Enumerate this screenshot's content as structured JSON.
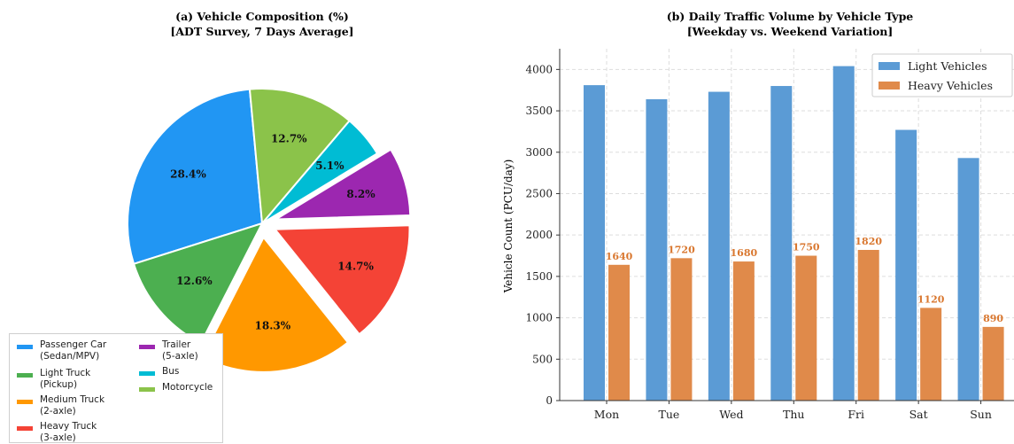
{
  "chart_data": [
    {
      "type": "pie",
      "title": "(a) Vehicle Composition (%)",
      "subtitle": "[ADT Survey, 7 Days Average]",
      "slices": [
        {
          "label": "Passenger Car\n(Sedan/MPV)",
          "value": 28.4,
          "value_label": "28.4%",
          "color": "#2196f3",
          "explode": false
        },
        {
          "label": "Light Truck\n(Pickup)",
          "value": 12.6,
          "value_label": "12.6%",
          "color": "#4caf50",
          "explode": false
        },
        {
          "label": "Medium Truck\n(2-axle)",
          "value": 18.3,
          "value_label": "18.3%",
          "color": "#ff9800",
          "explode": true
        },
        {
          "label": "Heavy Truck\n(3-axle)",
          "value": 14.7,
          "value_label": "14.7%",
          "color": "#f44336",
          "explode": true
        },
        {
          "label": "Trailer\n(5-axle)",
          "value": 8.2,
          "value_label": "8.2%",
          "color": "#9c27b0",
          "explode": true
        },
        {
          "label": "Bus",
          "value": 5.1,
          "value_label": "5.1%",
          "color": "#00bcd4",
          "explode": false
        },
        {
          "label": "Motorcycle",
          "value": 12.7,
          "value_label": "12.7%",
          "color": "#8bc34a",
          "explode": false
        }
      ],
      "legend_position": "bottom-left"
    },
    {
      "type": "bar",
      "title": "(b) Daily Traffic Volume by Vehicle Type",
      "subtitle": "[Weekday vs. Weekend Variation]",
      "categories": [
        "Mon",
        "Tue",
        "Wed",
        "Thu",
        "Fri",
        "Sat",
        "Sun"
      ],
      "series": [
        {
          "name": "Light Vehicles",
          "values": [
            3810,
            3640,
            3730,
            3800,
            4040,
            3270,
            2930
          ],
          "color": "#5b9bd5"
        },
        {
          "name": "Heavy Vehicles",
          "values": [
            1640,
            1720,
            1680,
            1750,
            1820,
            1120,
            890
          ],
          "color": "#e08a4a",
          "data_labels": [
            "1640",
            "1720",
            "1680",
            "1750",
            "1820",
            "1120",
            "890"
          ],
          "label_color": "#d9772f"
        }
      ],
      "ylabel": "Vehicle Count (PCU/day)",
      "ylim": [
        0,
        4250
      ],
      "yticks": [
        "0",
        "500",
        "1000",
        "1500",
        "2000",
        "2500",
        "3000",
        "3500",
        "4000"
      ],
      "grid": true,
      "legend_position": "top-right"
    }
  ]
}
